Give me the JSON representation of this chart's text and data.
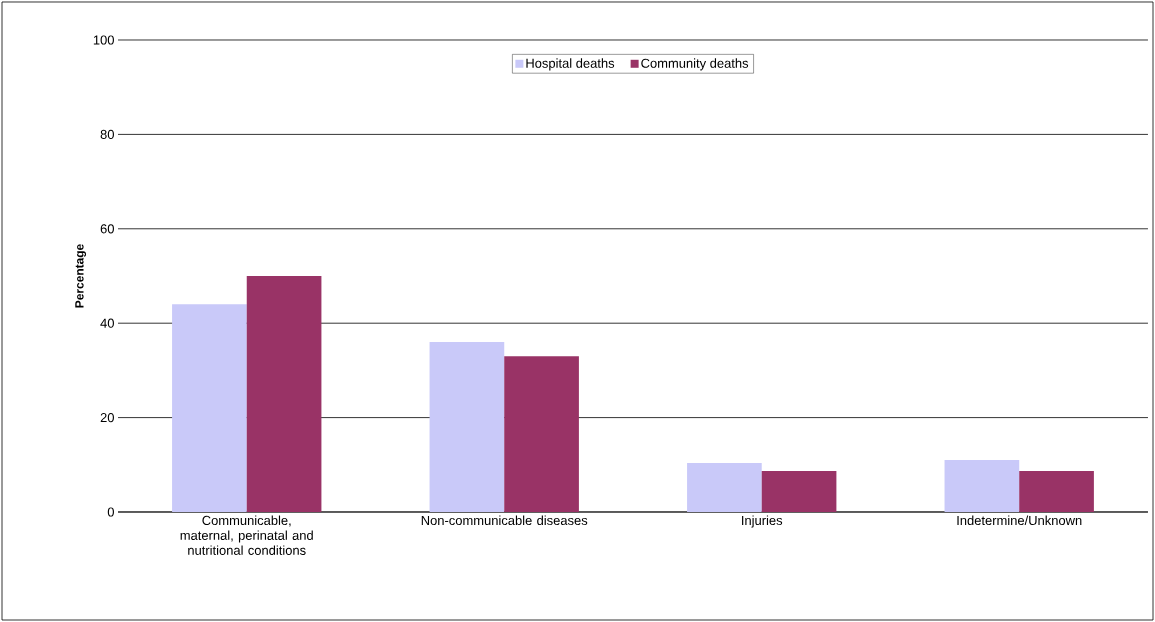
{
  "chart_data": {
    "type": "bar",
    "ylabel": "Percentage",
    "categories": [
      "Communicable, maternal, perinatal and nutritional conditions",
      "Non-communicable diseases",
      "Injuries",
      "Indetermine/Unknown"
    ],
    "series": [
      {
        "name": "Hospital deaths",
        "color": "#c9c9f9",
        "values": [
          44,
          36,
          10.4,
          11
        ]
      },
      {
        "name": "Community deaths",
        "color": "#993366",
        "values": [
          50,
          33,
          8.7,
          8.7
        ]
      }
    ],
    "ylim": [
      0,
      100
    ],
    "yticks": [
      0,
      20,
      40,
      60,
      80,
      100
    ],
    "grid": "y",
    "legend": "top"
  }
}
